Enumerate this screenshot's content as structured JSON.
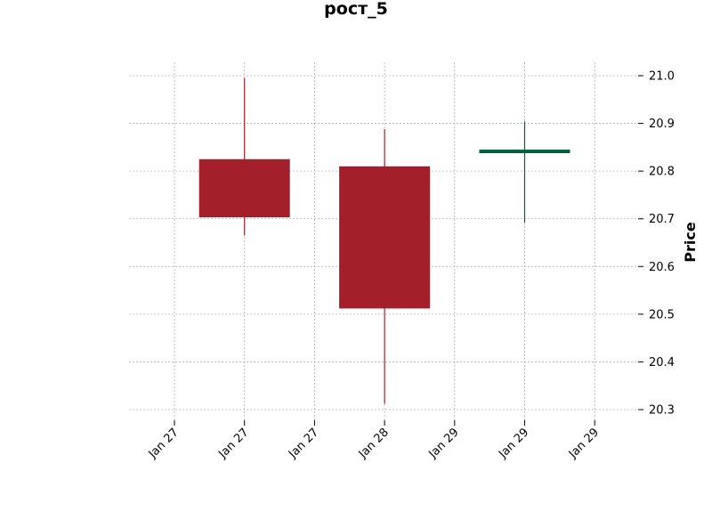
{
  "chart_data": {
    "type": "candlestick",
    "title": "рост_5",
    "ylabel": "Price",
    "ylim": [
      20.28,
      21.03
    ],
    "y_ticks": [
      "20.3",
      "20.4",
      "20.5",
      "20.6",
      "20.7",
      "20.8",
      "20.9",
      "21.0"
    ],
    "x_tick_labels": [
      "Jan 27",
      "Jan 27",
      "Jan 27",
      "Jan 28",
      "Jan 29",
      "Jan 29",
      "Jan 29"
    ],
    "grid": true,
    "candles": [
      {
        "open": 20.825,
        "high": 20.995,
        "low": 20.665,
        "close": 20.703,
        "color": "#a3202a"
      },
      {
        "open": 20.81,
        "high": 20.888,
        "low": 20.312,
        "close": 20.512,
        "color": "#a3202a"
      },
      {
        "open": 20.84,
        "high": 20.904,
        "low": 20.692,
        "close": 20.845,
        "color": "#00613a"
      }
    ],
    "colors": {
      "down": "#a3202a",
      "up": "#00613a"
    }
  }
}
